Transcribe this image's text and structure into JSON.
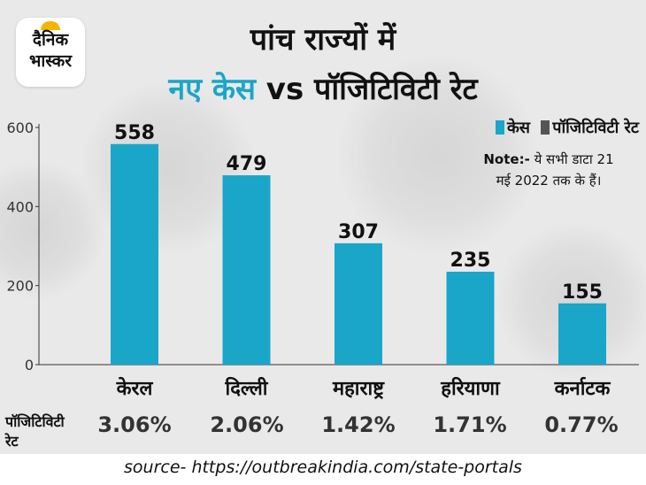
{
  "brand": {
    "logo_line1": "दैनिक",
    "logo_line2": "भास्कर"
  },
  "title": {
    "line1": "पांच राज्यों में",
    "line2_part1": "नए केस",
    "line2_part2": "vs पॉजिटिविटी रेट"
  },
  "legend": {
    "cases_label": "केस",
    "positivity_label": "पॉजिटिविटी रेट",
    "cases_color": "#1aa6c8",
    "positivity_color": "#555555"
  },
  "note": {
    "line1_bold": "Note:-",
    "line1_rest": "ये सभी डाटा 21",
    "line2": "मई 2022 तक के हैं।"
  },
  "chart_data": {
    "type": "bar",
    "title": "पांच राज्यों में नए केस vs पॉजिटिविटी रेट",
    "categories": [
      "केरल",
      "दिल्ली",
      "महाराष्ट्र",
      "हरियाणा",
      "कर्नाटक"
    ],
    "series": [
      {
        "name": "केस",
        "values": [
          558,
          479,
          307,
          235,
          155
        ],
        "color": "#1aa6c8"
      }
    ],
    "data_labels": [
      "558",
      "479",
      "307",
      "235",
      "155"
    ],
    "yticks": [
      "0",
      "200",
      "400",
      "600"
    ],
    "ylim": [
      0,
      600
    ],
    "xlabel": "",
    "ylabel": "",
    "legend_position": "top-right",
    "grid": false
  },
  "positivity": {
    "label_line1": "पॉजिटिविटी",
    "label_line2": "रेट",
    "values": [
      "3.06%",
      "2.06%",
      "1.42%",
      "1.71%",
      "0.77%"
    ]
  },
  "source": "source- https://outbreakindia.com/state-portals"
}
